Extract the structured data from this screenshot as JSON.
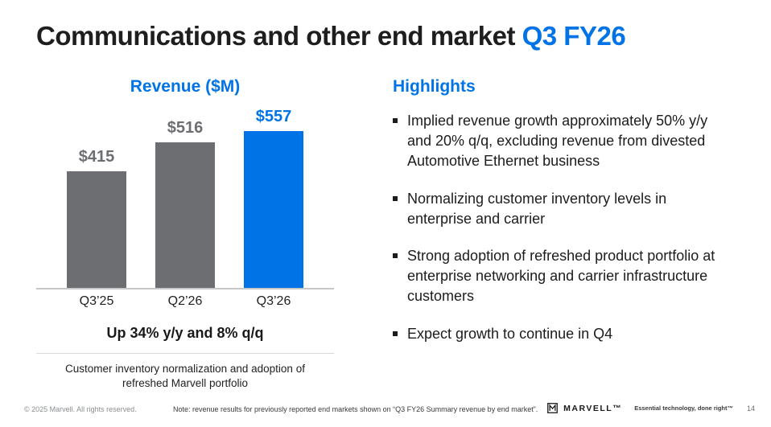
{
  "slide": {
    "title_main": "Communications and other end market",
    "title_accent": "Q3 FY26"
  },
  "colors": {
    "accent_blue": "#0073e6",
    "bar_gray": "#6d6e71",
    "text_dark": "#1e1e1e"
  },
  "chart_data": {
    "type": "bar",
    "title": "Revenue ($M)",
    "categories": [
      "Q3’25",
      "Q2’26",
      "Q3’26"
    ],
    "values": [
      415,
      516,
      557
    ],
    "value_labels": [
      "$415",
      "$516",
      "$557"
    ],
    "bar_colors": [
      "#6d6e71",
      "#6d6e71",
      "#0073e6"
    ],
    "xlabel": "",
    "ylabel": "",
    "ylim": [
      0,
      600
    ],
    "grid": false,
    "legend": false,
    "annotation": "Up 34% y/y and 8% q/q",
    "caption": "Customer inventory normalization and adoption of refreshed Marvell portfolio"
  },
  "highlights": {
    "heading": "Highlights",
    "bullets": [
      "Implied revenue growth approximately 50% y/y and 20% q/q, excluding revenue from divested Automotive Ethernet business",
      "Normalizing customer inventory levels in enterprise and carrier",
      "Strong adoption of refreshed product portfolio at enterprise networking and carrier infrastructure customers",
      "Expect growth to continue in Q4"
    ]
  },
  "footer": {
    "copyright": "© 2025 Marvell. All rights reserved.",
    "note": "Note: revenue results for previously reported end markets shown on “Q3 FY26 Summary revenue by end market”.",
    "logo_icon": "marvell-logo-icon",
    "brand": "MARVELL™",
    "tagline": "Essential technology, done right™",
    "page_number": "14"
  }
}
